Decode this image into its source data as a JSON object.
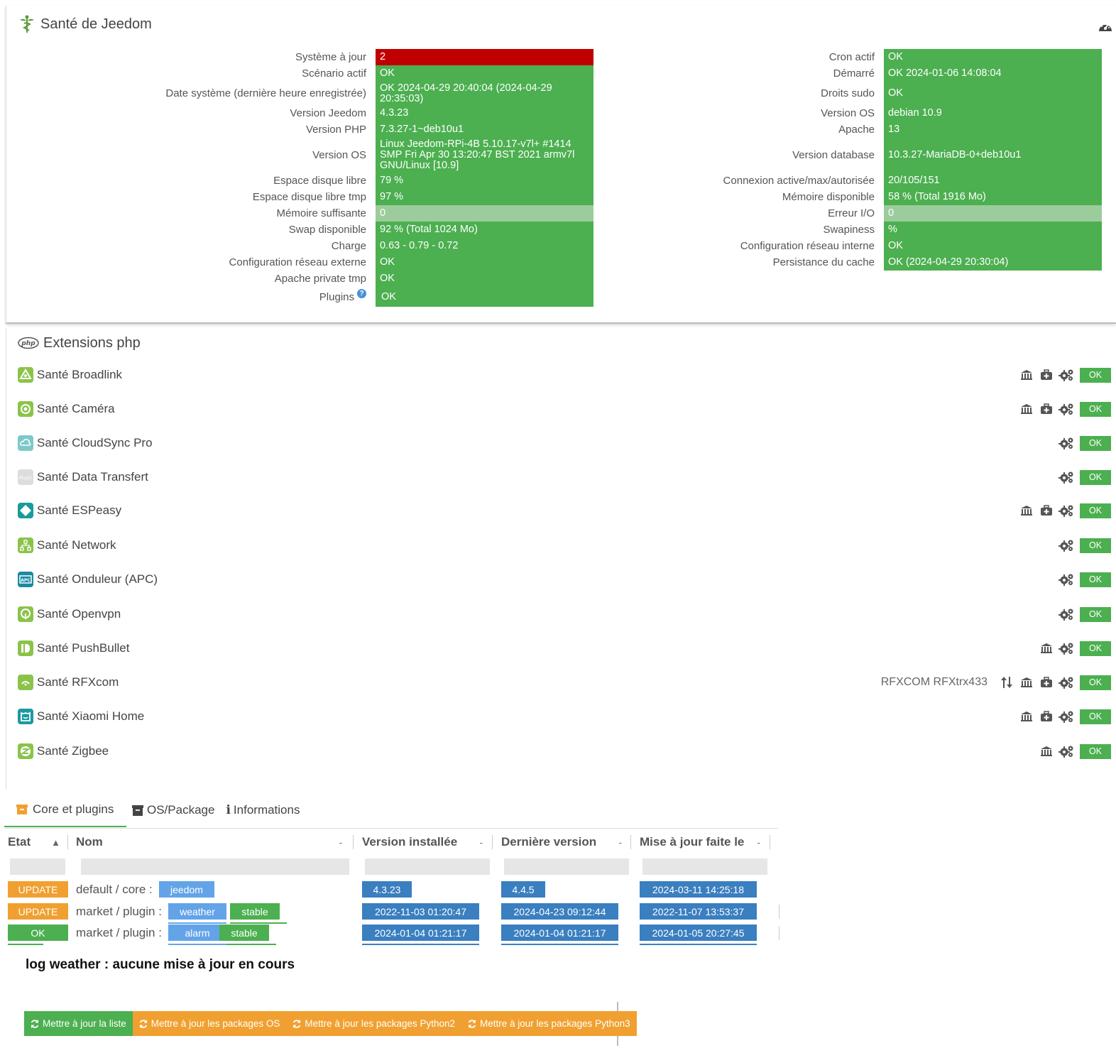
{
  "health": {
    "title": "Santé de Jeedom",
    "left": [
      {
        "label": "Système à jour",
        "value": "2",
        "status": "red"
      },
      {
        "label": "Scénario actif",
        "value": "OK",
        "status": "green"
      },
      {
        "label": "Date système (dernière heure enregistrée)",
        "value": "OK 2024-04-29 20:40:04 (2024-04-29 20:35:03)",
        "status": "green"
      },
      {
        "label": "Version Jeedom",
        "value": "4.3.23",
        "status": "green"
      },
      {
        "label": "Version PHP",
        "value": "7.3.27-1~deb10u1",
        "status": "green"
      },
      {
        "label": "Version OS",
        "value": "Linux Jeedom-RPi-4B 5.10.17-v7l+ #1414 SMP Fri Apr 30 13:20:47 BST 2021 armv7l GNU/Linux [10.9]",
        "status": "green"
      },
      {
        "label": "Espace disque libre",
        "value": "79 %",
        "status": "green"
      },
      {
        "label": "Espace disque libre tmp",
        "value": "97 %",
        "status": "green"
      },
      {
        "label": "Mémoire suffisante",
        "value": "0",
        "status": "pale"
      },
      {
        "label": "Swap disponible",
        "value": "92 % (Total 1024 Mo)",
        "status": "green"
      },
      {
        "label": "Charge",
        "value": "0.63 - 0.79 - 0.72",
        "status": "green"
      },
      {
        "label": "Configuration réseau externe",
        "value": "OK",
        "status": "green"
      },
      {
        "label": "Apache private tmp",
        "value": "OK",
        "status": "green"
      },
      {
        "label": "Plugins",
        "value": "OK",
        "status": "green"
      }
    ],
    "right": [
      {
        "label": "Cron actif",
        "value": "OK",
        "status": "green"
      },
      {
        "label": "Démarré",
        "value": "OK 2024-01-06 14:08:04",
        "status": "green"
      },
      {
        "label": "Droits sudo",
        "value": "OK",
        "status": "green"
      },
      {
        "label": "Version OS",
        "value": "debian 10.9",
        "status": "green"
      },
      {
        "label": "Apache",
        "value": "13",
        "status": "green"
      },
      {
        "label": "Version database",
        "value": "10.3.27-MariaDB-0+deb10u1",
        "status": "green"
      },
      {
        "label": "Connexion active/max/autorisée",
        "value": "20/105/151",
        "status": "green"
      },
      {
        "label": "Mémoire disponible",
        "value": "58 % (Total 1916 Mo)",
        "status": "green"
      },
      {
        "label": "Erreur I/O",
        "value": "0",
        "status": "pale"
      },
      {
        "label": "Swapiness",
        "value": "%",
        "status": "green"
      },
      {
        "label": "Configuration réseau interne",
        "value": "OK",
        "status": "green"
      },
      {
        "label": "Persistance du cache",
        "value": "OK (2024-04-29 20:30:04)",
        "status": "green"
      }
    ]
  },
  "extensions": {
    "title": "Extensions php",
    "plugins": [
      {
        "name": "Santé Broadlink",
        "icon": "broadlink-icon",
        "color": "#8bc34a",
        "actions": [
          "bank-icon",
          "medkit-icon",
          "cogs-icon"
        ],
        "status": "OK",
        "info": ""
      },
      {
        "name": "Santé Caméra",
        "icon": "camera-icon",
        "color": "#8bc34a",
        "actions": [
          "bank-icon",
          "medkit-icon",
          "cogs-icon"
        ],
        "status": "OK",
        "info": ""
      },
      {
        "name": "Santé CloudSync Pro",
        "icon": "cloudsync-icon",
        "color": "#7ec8c8",
        "actions": [
          "cogs-icon"
        ],
        "status": "OK",
        "info": ""
      },
      {
        "name": "Santé Data Transfert",
        "icon": "data-transfert-icon",
        "color": "#dddddd",
        "actions": [
          "cogs-icon"
        ],
        "status": "OK",
        "info": ""
      },
      {
        "name": "Santé ESPeasy",
        "icon": "espeasy-icon",
        "color": "#1a9a9a",
        "actions": [
          "bank-icon",
          "medkit-icon",
          "cogs-icon"
        ],
        "status": "OK",
        "info": ""
      },
      {
        "name": "Santé Network",
        "icon": "network-icon",
        "color": "#8bc34a",
        "actions": [
          "cogs-icon"
        ],
        "status": "OK",
        "info": ""
      },
      {
        "name": "Santé Onduleur (APC)",
        "icon": "apc-icon",
        "color": "#1a8aa0",
        "actions": [
          "cogs-icon"
        ],
        "status": "OK",
        "info": ""
      },
      {
        "name": "Santé Openvpn",
        "icon": "openvpn-icon",
        "color": "#8bc34a",
        "actions": [
          "cogs-icon"
        ],
        "status": "OK",
        "info": ""
      },
      {
        "name": "Santé PushBullet",
        "icon": "pushbullet-icon",
        "color": "#8bc34a",
        "actions": [
          "bank-icon",
          "cogs-icon"
        ],
        "status": "OK",
        "info": ""
      },
      {
        "name": "Santé RFXcom",
        "icon": "rfxcom-icon",
        "color": "#8bc34a",
        "actions": [
          "sort-icon",
          "bank-icon",
          "medkit-icon",
          "cogs-icon"
        ],
        "status": "OK",
        "info": "RFXCOM RFXtrx433"
      },
      {
        "name": "Santé Xiaomi Home",
        "icon": "xiaomi-icon",
        "color": "#1a9aa0",
        "actions": [
          "bank-icon",
          "medkit-icon",
          "cogs-icon"
        ],
        "status": "OK",
        "info": ""
      },
      {
        "name": "Santé Zigbee",
        "icon": "zigbee-icon",
        "color": "#8bc34a",
        "actions": [
          "bank-icon",
          "cogs-icon"
        ],
        "status": "OK",
        "info": ""
      }
    ]
  },
  "update": {
    "tabs": [
      {
        "label": "Core et plugins",
        "icon": "archive-icon"
      },
      {
        "label": "OS/Package",
        "icon": "box-icon"
      },
      {
        "label": "Informations",
        "icon": "info-icon"
      }
    ],
    "columns": [
      {
        "label": "Etat",
        "sort": "▲"
      },
      {
        "label": "Nom",
        "sort": "-"
      },
      {
        "label": "Version installée",
        "sort": "-"
      },
      {
        "label": "Dernière version",
        "sort": "-"
      },
      {
        "label": "Mise à jour faite le",
        "sort": "-"
      }
    ],
    "rows": [
      {
        "state": "UPDATE",
        "state_color": "#f0a030",
        "source": "default / core :",
        "name": "jeedom",
        "branch": "",
        "installed": "4.3.23",
        "latest": "4.4.5",
        "updated": "2024-03-11 14:25:18"
      },
      {
        "state": "UPDATE",
        "state_color": "#f0a030",
        "source": "market / plugin :",
        "name": "weather",
        "branch": "stable",
        "installed": "2022-11-03 01:20:47",
        "latest": "2024-04-23 09:12:44",
        "updated": "2022-11-07 13:53:37"
      },
      {
        "state": "OK",
        "state_color": "#4caf50",
        "source": "market / plugin :",
        "name": "alarm",
        "branch": "stable",
        "installed": "2024-01-04 01:21:17",
        "latest": "2024-01-04 01:21:17",
        "updated": "2024-01-05 20:27:45"
      }
    ],
    "log_message": "log weather : aucune mise à jour en cours",
    "buttons": [
      {
        "label": "Mettre à jour la liste",
        "color": "#4caf50"
      },
      {
        "label": "Mettre à jour les packages OS",
        "color": "#f0a030"
      },
      {
        "label": "Mettre à jour les packages Python2",
        "color": "#f0a030"
      },
      {
        "label": "Mettre à jour les packages Python3",
        "color": "#f0a030"
      }
    ]
  }
}
